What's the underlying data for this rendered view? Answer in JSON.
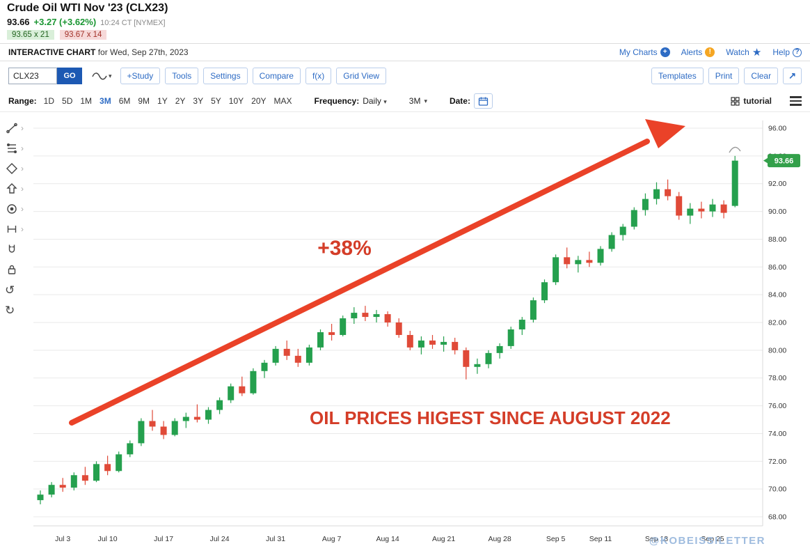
{
  "header": {
    "title": "Crude Oil WTI Nov '23 (CLX23)",
    "last": "93.66",
    "change": "+3.27 (+3.62%)",
    "quote_time": "10:24 CT [NYMEX]",
    "bid": "93.65 x 21",
    "ask": "93.67 x 14",
    "chart_label": "INTERACTIVE CHART",
    "chart_date": "for Wed, Sep 27th, 2023",
    "links": {
      "my_charts": "My Charts",
      "alerts": "Alerts",
      "watch": "Watch",
      "help": "Help"
    }
  },
  "toolbar": {
    "symbol_value": "CLX23",
    "go_label": "GO",
    "buttons_left": [
      "+Study",
      "Tools",
      "Settings",
      "Compare",
      "f(x)",
      "Grid View"
    ],
    "buttons_right": [
      "Templates",
      "Print",
      "Clear"
    ]
  },
  "range_bar": {
    "range_label": "Range:",
    "options": [
      "1D",
      "5D",
      "1M",
      "3M",
      "6M",
      "9M",
      "1Y",
      "2Y",
      "3Y",
      "5Y",
      "10Y",
      "20Y",
      "MAX"
    ],
    "selected": "3M",
    "frequency_label": "Frequency:",
    "frequency_value": "Daily",
    "period_value": "3M",
    "date_label": "Date:",
    "tutorial_label": "tutorial"
  },
  "left_toolbar": [
    "trendline",
    "fibonacci-levels",
    "shapes",
    "arrow",
    "target",
    "measure",
    "magnet",
    "lock",
    "undo",
    "redo"
  ],
  "icons": {
    "plus": "+",
    "alert": "!",
    "help": "?",
    "star": "★",
    "caret_down": "▾",
    "expand_arrow": "↗",
    "undo": "↺",
    "redo": "↻",
    "chevron_right": "›"
  },
  "annotations": {
    "gain_label": "+38%",
    "headline": "OIL PRICES HIGEST SINCE AUGUST 2022",
    "watermark": "@KOBEISSILETTER",
    "arrow_color": "#ea4228",
    "text_color": "#d43d28",
    "watermark_color": "#9fbcdf"
  },
  "chart_data": {
    "type": "candlestick",
    "title": "Crude Oil WTI Nov '23 (CLX23) - Daily - 3M",
    "last_price": 93.66,
    "up_color": "#25a04e",
    "down_color": "#e04a38",
    "badge_color": "#33a04a",
    "ylim": [
      67.0,
      97.2
    ],
    "grid": true,
    "y_ticks": [
      "68.00",
      "70.00",
      "72.00",
      "74.00",
      "76.00",
      "78.00",
      "80.00",
      "82.00",
      "84.00",
      "86.00",
      "88.00",
      "90.00",
      "92.00",
      "94.00",
      "96.00"
    ],
    "x_ticks": [
      {
        "label": "Jul 3",
        "i": 2
      },
      {
        "label": "Jul 10",
        "i": 6
      },
      {
        "label": "Jul 17",
        "i": 11
      },
      {
        "label": "Jul 24",
        "i": 16
      },
      {
        "label": "Jul 31",
        "i": 21
      },
      {
        "label": "Aug 7",
        "i": 26
      },
      {
        "label": "Aug 14",
        "i": 31
      },
      {
        "label": "Aug 21",
        "i": 36
      },
      {
        "label": "Aug 28",
        "i": 41
      },
      {
        "label": "Sep 5",
        "i": 46
      },
      {
        "label": "Sep 11",
        "i": 50
      },
      {
        "label": "Sep 18",
        "i": 55
      },
      {
        "label": "Sep 25",
        "i": 60
      }
    ],
    "candles": [
      [
        69.2,
        69.9,
        68.9,
        69.6
      ],
      [
        69.6,
        70.5,
        69.4,
        70.3
      ],
      [
        70.3,
        70.8,
        69.8,
        70.1
      ],
      [
        70.1,
        71.2,
        69.9,
        71.0
      ],
      [
        71.0,
        71.6,
        70.3,
        70.6
      ],
      [
        70.6,
        72.0,
        70.5,
        71.8
      ],
      [
        71.8,
        72.4,
        71.0,
        71.3
      ],
      [
        71.3,
        72.7,
        71.2,
        72.5
      ],
      [
        72.5,
        73.5,
        72.3,
        73.3
      ],
      [
        73.3,
        75.1,
        73.1,
        74.9
      ],
      [
        74.9,
        75.7,
        74.2,
        74.5
      ],
      [
        74.5,
        74.9,
        73.6,
        73.9
      ],
      [
        73.9,
        75.1,
        73.8,
        74.9
      ],
      [
        74.9,
        75.5,
        74.4,
        75.2
      ],
      [
        75.2,
        76.1,
        74.8,
        75.0
      ],
      [
        75.0,
        75.9,
        74.7,
        75.7
      ],
      [
        75.7,
        76.6,
        75.4,
        76.4
      ],
      [
        76.4,
        77.6,
        76.2,
        77.4
      ],
      [
        77.4,
        78.1,
        76.7,
        76.9
      ],
      [
        76.9,
        78.7,
        76.8,
        78.5
      ],
      [
        78.5,
        79.3,
        78.0,
        79.1
      ],
      [
        79.1,
        80.3,
        78.9,
        80.1
      ],
      [
        80.1,
        80.7,
        79.3,
        79.6
      ],
      [
        79.6,
        80.1,
        78.8,
        79.1
      ],
      [
        79.1,
        80.4,
        78.9,
        80.2
      ],
      [
        80.2,
        81.5,
        80.0,
        81.3
      ],
      [
        81.3,
        81.9,
        80.7,
        81.1
      ],
      [
        81.1,
        82.5,
        81.0,
        82.3
      ],
      [
        82.3,
        83.1,
        81.9,
        82.7
      ],
      [
        82.7,
        83.2,
        82.1,
        82.4
      ],
      [
        82.4,
        82.9,
        82.0,
        82.6
      ],
      [
        82.6,
        82.8,
        81.7,
        82.0
      ],
      [
        82.0,
        82.3,
        80.9,
        81.1
      ],
      [
        81.1,
        81.4,
        80.0,
        80.2
      ],
      [
        80.2,
        81.0,
        79.7,
        80.7
      ],
      [
        80.7,
        81.1,
        80.1,
        80.4
      ],
      [
        80.4,
        81.0,
        79.9,
        80.6
      ],
      [
        80.6,
        80.9,
        79.7,
        80.0
      ],
      [
        80.0,
        80.2,
        77.9,
        78.8
      ],
      [
        78.8,
        79.4,
        78.3,
        79.0
      ],
      [
        79.0,
        80.0,
        78.7,
        79.8
      ],
      [
        79.8,
        80.5,
        79.4,
        80.3
      ],
      [
        80.3,
        81.7,
        80.1,
        81.5
      ],
      [
        81.5,
        82.4,
        81.1,
        82.2
      ],
      [
        82.2,
        83.8,
        82.0,
        83.6
      ],
      [
        83.6,
        85.1,
        83.4,
        84.9
      ],
      [
        84.9,
        86.9,
        84.7,
        86.7
      ],
      [
        86.7,
        87.4,
        85.9,
        86.2
      ],
      [
        86.2,
        86.8,
        85.6,
        86.5
      ],
      [
        86.5,
        87.1,
        86.0,
        86.3
      ],
      [
        86.3,
        87.5,
        86.1,
        87.3
      ],
      [
        87.3,
        88.5,
        87.1,
        88.3
      ],
      [
        88.3,
        89.1,
        87.9,
        88.9
      ],
      [
        88.9,
        90.3,
        88.7,
        90.1
      ],
      [
        90.1,
        91.3,
        89.7,
        90.9
      ],
      [
        90.9,
        92.1,
        90.5,
        91.6
      ],
      [
        91.6,
        92.3,
        90.8,
        91.1
      ],
      [
        91.1,
        91.4,
        89.4,
        89.7
      ],
      [
        89.7,
        90.6,
        89.1,
        90.2
      ],
      [
        90.2,
        90.7,
        89.5,
        90.0
      ],
      [
        90.0,
        90.9,
        89.6,
        90.5
      ],
      [
        90.5,
        90.8,
        89.5,
        89.9
      ],
      [
        90.4,
        94.0,
        90.3,
        93.66
      ]
    ]
  }
}
